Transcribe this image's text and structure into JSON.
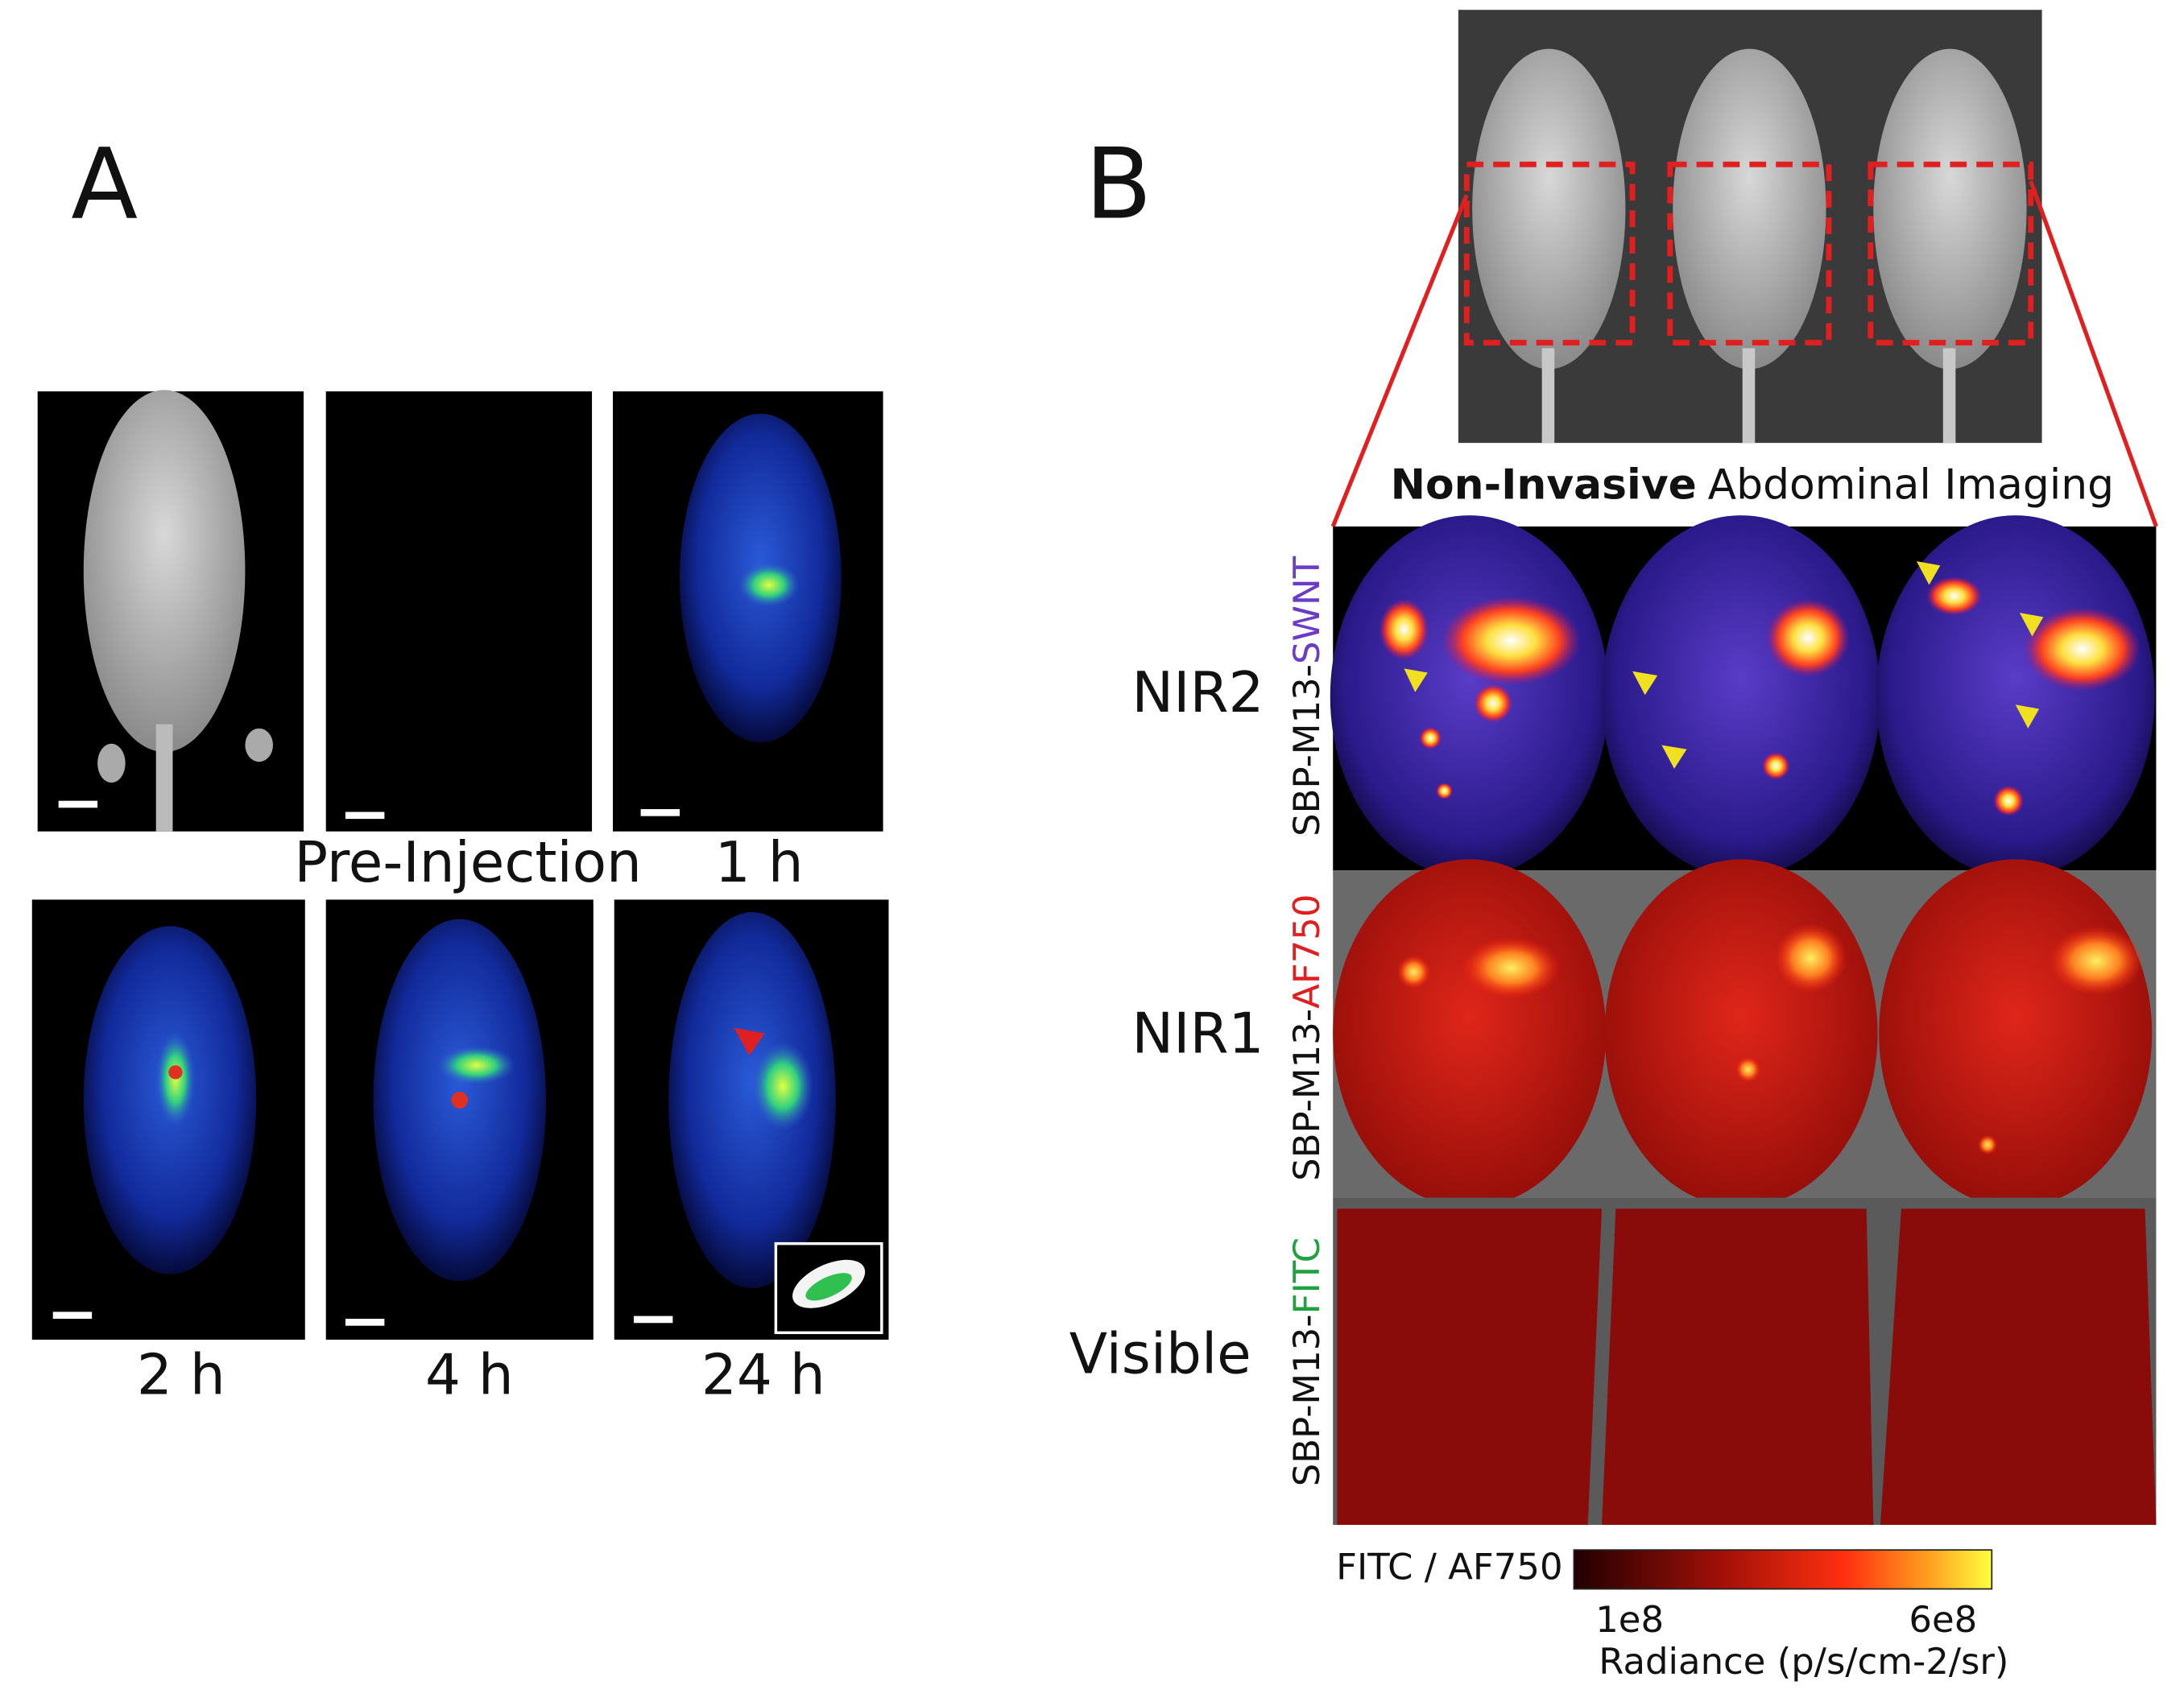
{
  "panel_a": {
    "label": "A",
    "time_labels": [
      "Pre-Injection",
      "1 h",
      "2 h",
      "4 h",
      "24 h"
    ]
  },
  "panel_b": {
    "label": "B",
    "title_bold": "Non-Invasive",
    "title_rest": "Abdominal Imaging",
    "rows": [
      {
        "channel": "NIR2",
        "probe_prefix": "SBP-M13-",
        "probe_name": "SWNT"
      },
      {
        "channel": "NIR1",
        "probe_prefix": "SBP-M13-",
        "probe_name": "AF750"
      },
      {
        "channel": "Visible",
        "probe_prefix": "SBP-M13-",
        "probe_name": "FITC"
      }
    ],
    "colorbar": {
      "title": "FITC / AF750",
      "ticks": [
        "1e8",
        "6e8"
      ],
      "unit_label": "Radiance (p/s/cm-2/sr)"
    }
  }
}
